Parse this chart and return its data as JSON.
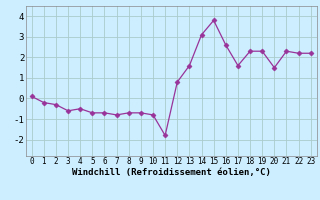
{
  "x": [
    0,
    1,
    2,
    3,
    4,
    5,
    6,
    7,
    8,
    9,
    10,
    11,
    12,
    13,
    14,
    15,
    16,
    17,
    18,
    19,
    20,
    21,
    22,
    23
  ],
  "y": [
    0.1,
    -0.2,
    -0.3,
    -0.6,
    -0.5,
    -0.7,
    -0.7,
    -0.8,
    -0.7,
    -0.7,
    -0.8,
    -1.8,
    0.8,
    1.6,
    3.1,
    3.8,
    2.6,
    1.6,
    2.3,
    2.3,
    1.5,
    2.3,
    2.2,
    2.2
  ],
  "line_color": "#993399",
  "marker": "D",
  "marker_size": 2.5,
  "bg_color": "#cceeff",
  "grid_color": "#aacccc",
  "xlabel": "Windchill (Refroidissement éolien,°C)",
  "xlabel_fontsize": 6.5,
  "ylabel_ticks": [
    -2,
    -1,
    0,
    1,
    2,
    3,
    4
  ],
  "xlim": [
    -0.5,
    23.5
  ],
  "ylim": [
    -2.8,
    4.5
  ],
  "tick_fontsize": 5.5,
  "ytick_fontsize": 6.5
}
